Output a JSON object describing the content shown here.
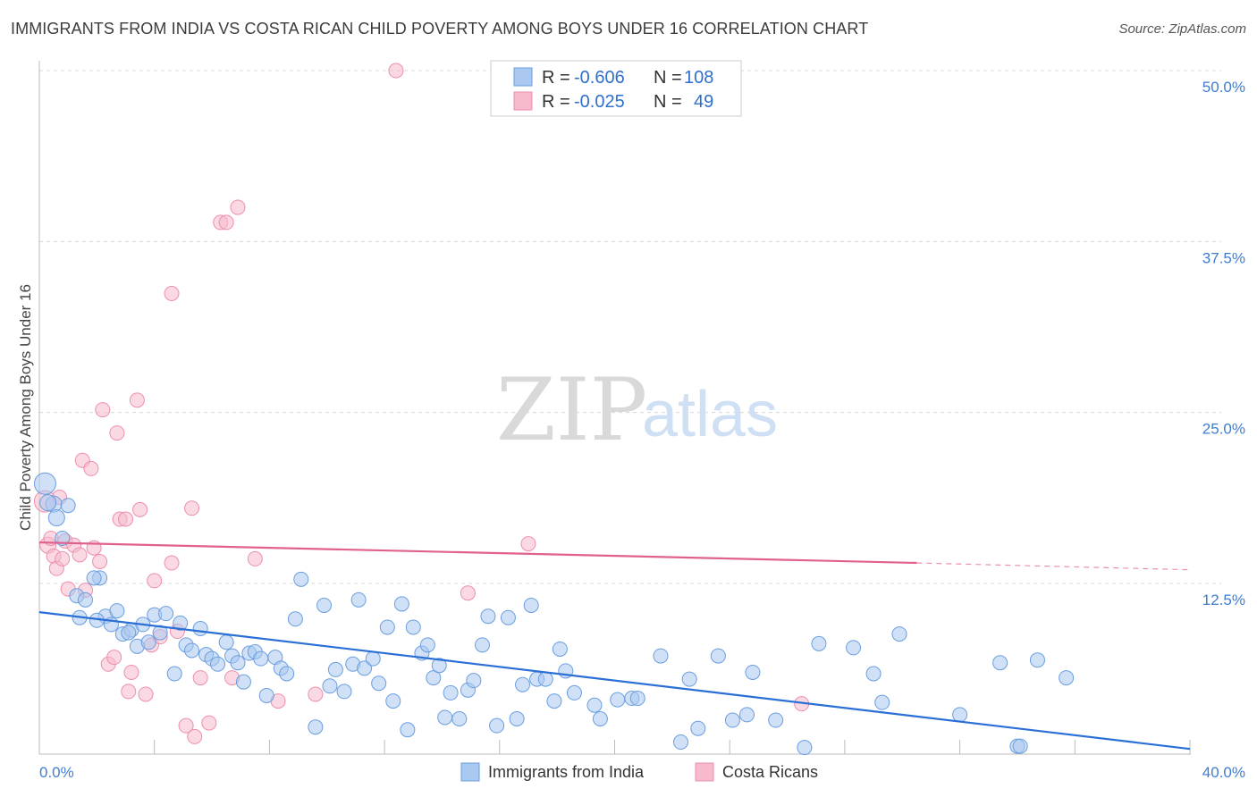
{
  "header": {
    "title": "IMMIGRANTS FROM INDIA VS COSTA RICAN CHILD POVERTY AMONG BOYS UNDER 16 CORRELATION CHART",
    "source": "Source: ZipAtlas.com"
  },
  "watermark": {
    "zip": "ZIP",
    "atlas": "atlas"
  },
  "legend": {
    "rows": [
      {
        "r_label": "R =",
        "r_value": "-0.606",
        "n_label": "N =",
        "n_value": "108",
        "color": "#aac8f0"
      },
      {
        "r_label": "R =",
        "r_value": "-0.025",
        "n_label": "N =",
        "n_value": "49",
        "color": "#f7b9cc"
      }
    ]
  },
  "bottom_legend": {
    "items": [
      {
        "label": "Immigrants from India",
        "color": "#aac8f0"
      },
      {
        "label": "Costa Ricans",
        "color": "#f7b9cc"
      }
    ]
  },
  "chart_data": {
    "type": "scatter",
    "title": "IMMIGRANTS FROM INDIA VS COSTA RICAN CHILD POVERTY AMONG BOYS UNDER 16 CORRELATION CHART",
    "xlabel": "",
    "ylabel": "Child Poverty Among Boys Under 16",
    "xlim": [
      0,
      40
    ],
    "ylim": [
      0,
      52
    ],
    "x_tick_labels": [
      "0.0%",
      "40.0%"
    ],
    "y_ticks": [
      12.5,
      25,
      37.5,
      50
    ],
    "y_tick_labels": [
      "12.5%",
      "25.0%",
      "37.5%",
      "50.0%"
    ],
    "grid": true,
    "series": [
      {
        "name": "Immigrants from India",
        "color": "#aac8f0",
        "stroke": "#6a9ee0",
        "trend": {
          "x": [
            0,
            40
          ],
          "y": [
            10.4,
            0.4
          ],
          "color": "#2a6fd6"
        },
        "points": [
          [
            0.2,
            19.8,
            12
          ],
          [
            0.5,
            18.3,
            9
          ],
          [
            0.6,
            17.3,
            9
          ],
          [
            1.0,
            18.2,
            8
          ],
          [
            0.8,
            15.8,
            8
          ],
          [
            2.1,
            12.9,
            8
          ],
          [
            1.3,
            11.6,
            8
          ],
          [
            1.6,
            11.3,
            8
          ],
          [
            1.9,
            12.9,
            8
          ],
          [
            2.3,
            10.1,
            8
          ],
          [
            2.5,
            9.5,
            8
          ],
          [
            2.7,
            10.5,
            8
          ],
          [
            2.9,
            8.8,
            8
          ],
          [
            3.2,
            9.1,
            8
          ],
          [
            3.4,
            7.9,
            8
          ],
          [
            3.6,
            9.5,
            8
          ],
          [
            3.8,
            8.2,
            8
          ],
          [
            4.0,
            10.2,
            8
          ],
          [
            4.2,
            8.9,
            8
          ],
          [
            4.4,
            10.3,
            8
          ],
          [
            4.7,
            5.9,
            8
          ],
          [
            4.9,
            9.6,
            8
          ],
          [
            5.1,
            8.0,
            8
          ],
          [
            5.3,
            7.6,
            8
          ],
          [
            5.6,
            9.2,
            8
          ],
          [
            5.8,
            7.3,
            8
          ],
          [
            6.0,
            7.0,
            8
          ],
          [
            6.2,
            6.6,
            8
          ],
          [
            6.5,
            8.2,
            8
          ],
          [
            6.7,
            7.2,
            8
          ],
          [
            6.9,
            6.7,
            8
          ],
          [
            7.1,
            5.3,
            8
          ],
          [
            7.3,
            7.4,
            8
          ],
          [
            7.5,
            7.5,
            8
          ],
          [
            7.7,
            7.0,
            8
          ],
          [
            7.9,
            4.3,
            8
          ],
          [
            8.2,
            7.1,
            8
          ],
          [
            8.4,
            6.3,
            8
          ],
          [
            8.6,
            5.9,
            8
          ],
          [
            8.9,
            9.9,
            8
          ],
          [
            9.1,
            12.8,
            8
          ],
          [
            9.6,
            2.0,
            8
          ],
          [
            9.9,
            10.9,
            8
          ],
          [
            10.1,
            5.0,
            8
          ],
          [
            10.3,
            6.2,
            8
          ],
          [
            10.6,
            4.6,
            8
          ],
          [
            10.9,
            6.6,
            8
          ],
          [
            11.1,
            11.3,
            8
          ],
          [
            11.3,
            6.3,
            8
          ],
          [
            11.6,
            7.0,
            8
          ],
          [
            11.8,
            5.2,
            8
          ],
          [
            12.1,
            9.3,
            8
          ],
          [
            12.3,
            3.9,
            8
          ],
          [
            12.6,
            11.0,
            8
          ],
          [
            12.8,
            1.8,
            8
          ],
          [
            13.0,
            9.3,
            8
          ],
          [
            13.3,
            7.4,
            8
          ],
          [
            13.5,
            8.0,
            8
          ],
          [
            13.7,
            5.6,
            8
          ],
          [
            13.9,
            6.5,
            8
          ],
          [
            14.1,
            2.7,
            8
          ],
          [
            14.3,
            4.5,
            8
          ],
          [
            14.6,
            2.6,
            8
          ],
          [
            14.9,
            4.7,
            8
          ],
          [
            15.1,
            5.4,
            8
          ],
          [
            15.4,
            8.0,
            8
          ],
          [
            15.6,
            10.1,
            8
          ],
          [
            15.9,
            2.1,
            8
          ],
          [
            16.3,
            10.0,
            8
          ],
          [
            16.6,
            2.6,
            8
          ],
          [
            16.8,
            5.1,
            8
          ],
          [
            17.1,
            10.9,
            8
          ],
          [
            17.3,
            5.5,
            8
          ],
          [
            17.6,
            5.5,
            8
          ],
          [
            17.9,
            3.9,
            8
          ],
          [
            18.1,
            7.7,
            8
          ],
          [
            18.3,
            6.1,
            8
          ],
          [
            18.6,
            4.5,
            8
          ],
          [
            19.3,
            3.6,
            8
          ],
          [
            19.5,
            2.6,
            8
          ],
          [
            20.1,
            4.0,
            8
          ],
          [
            20.6,
            4.1,
            8
          ],
          [
            20.8,
            4.1,
            8
          ],
          [
            21.6,
            7.2,
            8
          ],
          [
            22.3,
            0.9,
            8
          ],
          [
            22.6,
            5.5,
            8
          ],
          [
            22.9,
            1.9,
            8
          ],
          [
            23.6,
            7.2,
            8
          ],
          [
            24.1,
            2.5,
            8
          ],
          [
            24.6,
            2.9,
            8
          ],
          [
            24.8,
            6.0,
            8
          ],
          [
            25.6,
            2.5,
            8
          ],
          [
            26.6,
            0.5,
            8
          ],
          [
            27.1,
            8.1,
            8
          ],
          [
            28.3,
            7.8,
            8
          ],
          [
            29.0,
            5.9,
            8
          ],
          [
            29.3,
            3.8,
            8
          ],
          [
            29.9,
            8.8,
            8
          ],
          [
            32.0,
            2.9,
            8
          ],
          [
            33.4,
            6.7,
            8
          ],
          [
            34.0,
            0.6,
            8
          ],
          [
            34.7,
            6.9,
            8
          ],
          [
            35.7,
            5.6,
            8
          ],
          [
            34.1,
            0.6,
            8
          ],
          [
            0.3,
            18.4,
            9
          ],
          [
            1.4,
            10.0,
            8
          ],
          [
            2.0,
            9.8,
            8
          ],
          [
            3.1,
            8.9,
            8
          ]
        ]
      },
      {
        "name": "Costa Ricans",
        "color": "#f7b9cc",
        "stroke": "#ec8fae",
        "trend": {
          "x": [
            0,
            30.5
          ],
          "y": [
            15.5,
            14.0
          ],
          "dash_to": {
            "x": 40,
            "y": 13.5
          },
          "color": "#e0608e"
        },
        "points": [
          [
            0.2,
            18.5,
            12
          ],
          [
            0.3,
            15.3,
            9
          ],
          [
            0.4,
            15.8,
            8
          ],
          [
            0.5,
            14.5,
            8
          ],
          [
            0.6,
            13.6,
            8
          ],
          [
            0.7,
            18.8,
            8
          ],
          [
            0.8,
            14.3,
            8
          ],
          [
            0.9,
            15.6,
            8
          ],
          [
            1.0,
            12.1,
            8
          ],
          [
            1.2,
            15.3,
            8
          ],
          [
            1.4,
            14.6,
            8
          ],
          [
            1.5,
            21.5,
            8
          ],
          [
            1.6,
            12.0,
            8
          ],
          [
            1.8,
            20.9,
            8
          ],
          [
            1.9,
            15.1,
            8
          ],
          [
            2.1,
            14.1,
            8
          ],
          [
            2.2,
            25.2,
            8
          ],
          [
            2.4,
            6.6,
            8
          ],
          [
            2.6,
            7.1,
            8
          ],
          [
            2.7,
            23.5,
            8
          ],
          [
            2.8,
            17.2,
            8
          ],
          [
            3.0,
            17.2,
            8
          ],
          [
            3.1,
            4.6,
            8
          ],
          [
            3.2,
            6.0,
            8
          ],
          [
            3.4,
            25.9,
            8
          ],
          [
            3.5,
            17.9,
            8
          ],
          [
            3.7,
            4.4,
            8
          ],
          [
            3.9,
            8.0,
            8
          ],
          [
            4.0,
            12.7,
            8
          ],
          [
            4.2,
            8.6,
            8
          ],
          [
            4.6,
            33.7,
            8
          ],
          [
            4.6,
            14.0,
            8
          ],
          [
            4.8,
            9.0,
            8
          ],
          [
            5.1,
            2.1,
            8
          ],
          [
            5.3,
            18.0,
            8
          ],
          [
            5.4,
            1.3,
            8
          ],
          [
            5.6,
            5.6,
            8
          ],
          [
            5.9,
            2.3,
            8
          ],
          [
            6.3,
            38.9,
            8
          ],
          [
            6.5,
            38.9,
            8
          ],
          [
            6.7,
            5.6,
            8
          ],
          [
            6.9,
            40.0,
            8
          ],
          [
            7.5,
            14.3,
            8
          ],
          [
            8.3,
            3.9,
            8
          ],
          [
            9.6,
            4.4,
            8
          ],
          [
            12.4,
            50.0,
            8
          ],
          [
            14.9,
            11.8,
            8
          ],
          [
            17.0,
            15.4,
            8
          ],
          [
            26.5,
            3.7,
            8
          ]
        ]
      }
    ]
  }
}
